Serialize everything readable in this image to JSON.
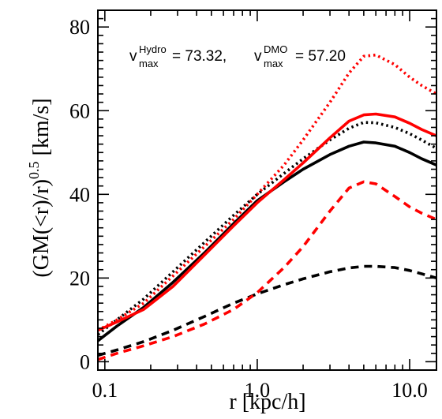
{
  "chart_data": {
    "type": "line",
    "xlabel": "r [kpc/h]",
    "ylabel_base": "(GM(<r)/r)",
    "ylabel_exp": "0.5",
    "ylabel_unit": " [km/s]",
    "xscale": "log",
    "xlim": [
      0.09,
      15
    ],
    "ylim": [
      -2,
      84
    ],
    "x_ticks": [
      0.1,
      1.0,
      10.0
    ],
    "x_tick_labels": [
      "0.1",
      "1.0",
      "10.0"
    ],
    "y_ticks": [
      0,
      20,
      40,
      60,
      80
    ],
    "y_tick_labels": [
      "0",
      "20",
      "40",
      "60",
      "80"
    ],
    "annotation": {
      "v1_base": "v",
      "v1_sup": "Hydro",
      "v1_sub": "max",
      "v1_value": "= 73.32,",
      "v2_base": "v",
      "v2_sup": "DMO",
      "v2_sub": "max",
      "v2_value": "= 57.20"
    },
    "series": [
      {
        "color": "#000000",
        "style": "solid",
        "x": [
          0.09,
          0.12,
          0.18,
          0.28,
          0.45,
          0.7,
          1.0,
          1.5,
          2.0,
          3.0,
          4.0,
          5.0,
          6.0,
          8.0,
          10.0,
          12.0,
          15.0
        ],
        "y": [
          5,
          8.5,
          13,
          19,
          26,
          33,
          38.5,
          43,
          46,
          49.5,
          51.5,
          52.5,
          52.3,
          51.5,
          50,
          48.5,
          47
        ]
      },
      {
        "color": "#000000",
        "style": "dotted",
        "x": [
          0.09,
          0.12,
          0.18,
          0.28,
          0.45,
          0.7,
          1.0,
          1.5,
          2.0,
          3.0,
          4.0,
          5.0,
          6.0,
          8.0,
          10.0,
          12.0,
          15.0
        ],
        "y": [
          6.5,
          10,
          15,
          21.5,
          28.5,
          35,
          40,
          45,
          48.5,
          53,
          55.8,
          57.2,
          57.1,
          56,
          54.5,
          53,
          51
        ]
      },
      {
        "color": "#ff0000",
        "style": "solid",
        "x": [
          0.09,
          0.12,
          0.18,
          0.28,
          0.45,
          0.7,
          1.0,
          1.5,
          2.0,
          3.0,
          4.0,
          5.0,
          6.0,
          8.0,
          10.0,
          12.0,
          15.0
        ],
        "y": [
          7.5,
          9.5,
          12.5,
          18,
          25.5,
          32.5,
          38,
          43.5,
          47.5,
          53.5,
          57.5,
          59,
          59.2,
          58.5,
          57,
          55.5,
          54
        ]
      },
      {
        "color": "#ff0000",
        "style": "dotted",
        "x": [
          0.09,
          0.12,
          0.18,
          0.28,
          0.45,
          0.7,
          1.0,
          1.5,
          2.0,
          3.0,
          4.0,
          5.0,
          6.0,
          8.0,
          10.0,
          12.0,
          15.0
        ],
        "y": [
          7.5,
          10,
          14,
          20.5,
          27.5,
          34,
          40,
          47,
          53,
          62,
          69,
          73,
          73.3,
          71,
          68,
          66,
          64
        ]
      },
      {
        "color": "#000000",
        "style": "dashed",
        "x": [
          0.09,
          0.12,
          0.18,
          0.28,
          0.45,
          0.7,
          1.0,
          1.5,
          2.0,
          3.0,
          4.0,
          5.0,
          6.0,
          8.0,
          10.0,
          12.0,
          15.0
        ],
        "y": [
          1.5,
          2.8,
          4.8,
          7.5,
          10.8,
          14,
          16.2,
          18.4,
          19.8,
          21.5,
          22.4,
          22.8,
          22.8,
          22.5,
          21.8,
          21,
          20
        ]
      },
      {
        "color": "#ff0000",
        "style": "dashed",
        "x": [
          0.09,
          0.12,
          0.18,
          0.28,
          0.45,
          0.7,
          1.0,
          1.5,
          2.0,
          3.0,
          4.0,
          5.0,
          6.0,
          8.0,
          10.0,
          12.0,
          15.0
        ],
        "y": [
          0.5,
          2,
          3.8,
          6,
          9,
          12.5,
          16.5,
          22.5,
          27.5,
          36,
          41.5,
          43,
          42.5,
          39.5,
          37,
          35.5,
          34
        ]
      }
    ]
  }
}
